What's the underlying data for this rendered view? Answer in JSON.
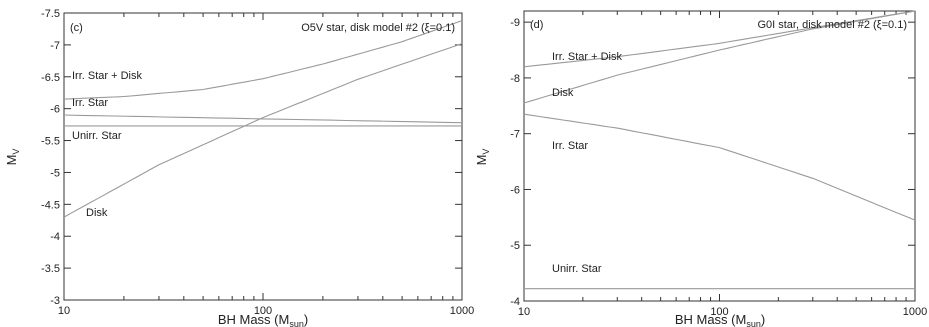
{
  "chart_data": [
    {
      "type": "line",
      "panel_tag": "(c)",
      "title": "O5V star, disk model #2 (ξ=0.1)",
      "xlabel_main": "BH Mass (M",
      "xlabel_sub": "sun",
      "xlabel_end": ")",
      "ylabel_main": "M",
      "ylabel_sub": "V",
      "x_scale": "log",
      "xlim": [
        10,
        1000
      ],
      "ylim": [
        -3,
        -7.5
      ],
      "y_inverted": true,
      "x_ticks": [
        10,
        100,
        1000
      ],
      "x_tick_labels": [
        "10",
        "100",
        "1000"
      ],
      "y_ticks": [
        -3,
        -3.5,
        -4,
        -4.5,
        -5,
        -5.5,
        -6,
        -6.5,
        -7,
        -7.5
      ],
      "y_tick_labels": [
        "-3",
        "-3.5",
        "-4",
        "-4.5",
        "-5",
        "-5.5",
        "-6",
        "-6.5",
        "-7",
        "-7.5"
      ],
      "series": [
        {
          "name": "Irr. Star + Disk",
          "x": [
            10,
            20,
            50,
            100,
            200,
            500,
            1000
          ],
          "y": [
            -6.15,
            -6.19,
            -6.3,
            -6.47,
            -6.7,
            -7.05,
            -7.38
          ]
        },
        {
          "name": "Irr. Star",
          "x": [
            10,
            100,
            1000
          ],
          "y": [
            -5.9,
            -5.84,
            -5.78
          ]
        },
        {
          "name": "Unirr. Star",
          "x": [
            10,
            1000
          ],
          "y": [
            -5.73,
            -5.73
          ]
        },
        {
          "name": "Disk",
          "x": [
            10,
            30,
            100,
            300,
            1000
          ],
          "y": [
            -4.3,
            -5.12,
            -5.86,
            -6.46,
            -7.02
          ]
        }
      ]
    },
    {
      "type": "line",
      "panel_tag": "(d)",
      "title": "G0I star, disk model #2 (ξ=0.1)",
      "xlabel_main": "BH Mass (M",
      "xlabel_sub": "sun",
      "xlabel_end": ")",
      "ylabel_main": "M",
      "ylabel_sub": "V",
      "x_scale": "log",
      "xlim": [
        10,
        1000
      ],
      "ylim": [
        -4,
        -9.2
      ],
      "y_inverted": true,
      "x_ticks": [
        10,
        100,
        1000
      ],
      "x_tick_labels": [
        "10",
        "100",
        "1000"
      ],
      "y_ticks": [
        -4,
        -5,
        -6,
        -7,
        -8,
        -9
      ],
      "y_tick_labels": [
        "-4",
        "-5",
        "-6",
        "-7",
        "-8",
        "-9"
      ],
      "series": [
        {
          "name": "Irr. Star + Disk",
          "x": [
            10,
            30,
            100,
            300,
            1000
          ],
          "y": [
            -8.2,
            -8.38,
            -8.62,
            -8.9,
            -9.2
          ]
        },
        {
          "name": "Disk",
          "x": [
            10,
            30,
            100,
            300,
            1000
          ],
          "y": [
            -7.55,
            -8.05,
            -8.5,
            -8.88,
            -9.2
          ]
        },
        {
          "name": "Irr. Star",
          "x": [
            10,
            30,
            100,
            300,
            1000
          ],
          "y": [
            -7.35,
            -7.1,
            -6.75,
            -6.2,
            -5.45
          ]
        },
        {
          "name": "Unirr. Star",
          "x": [
            10,
            1000
          ],
          "y": [
            -4.22,
            -4.22
          ]
        }
      ]
    }
  ]
}
